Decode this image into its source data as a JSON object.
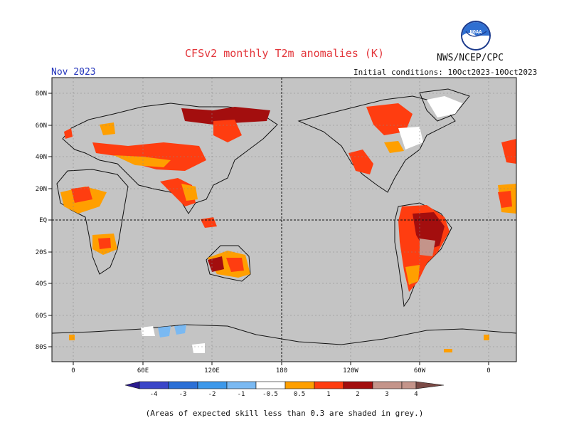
{
  "title": "CFSv2 monthly T2m anomalies (K)",
  "agency": "NWS/NCEP/CPC",
  "logo_text": "NOAA",
  "month": "Nov 2023",
  "initial_conditions": "Initial conditions: 10Oct2023-10Oct2023",
  "skill_note": "(Areas of expected skill less than 0.3 are shaded in grey.)",
  "map": {
    "ocean_color": "#c4c4c4",
    "lat_ticks": [
      "80N",
      "60N",
      "40N",
      "20N",
      "EQ",
      "20S",
      "40S",
      "60S",
      "80S"
    ],
    "lon_ticks": [
      "0",
      "60E",
      "120E",
      "180",
      "120W",
      "60W",
      "0"
    ]
  },
  "legend": {
    "labels": [
      "-4",
      "-3",
      "-2",
      "-1",
      "-0.5",
      "0.5",
      "1",
      "2",
      "3",
      "4"
    ],
    "colors": [
      "#2b1b8f",
      "#3a45c8",
      "#2a6fd6",
      "#3c98ea",
      "#7ab9f2",
      "#ffffff",
      "#ff9f00",
      "#ff3d10",
      "#a30e0e",
      "#c4948a",
      "#7a4a45"
    ]
  },
  "anomaly_regions": [
    {
      "region": "Siberia",
      "level": "3"
    },
    {
      "region": "Central Asia",
      "level": "1-2"
    },
    {
      "region": "West Africa",
      "level": "1"
    },
    {
      "region": "India",
      "level": "1"
    },
    {
      "region": "Australia",
      "level": "1-3"
    },
    {
      "region": "Brazil",
      "level": "3"
    },
    {
      "region": "Canada",
      "level": "1-2"
    },
    {
      "region": "Antarctica",
      "level": "-0.5 to -1"
    }
  ]
}
